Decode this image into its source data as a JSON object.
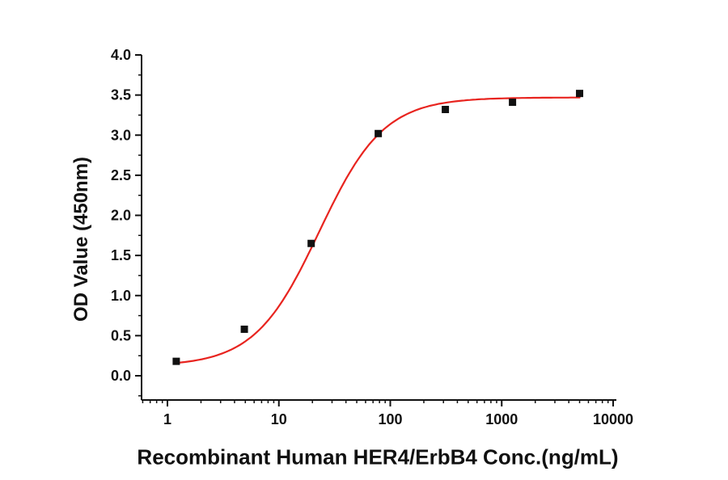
{
  "page": {
    "background": "#ffffff"
  },
  "chart_data": {
    "type": "scatter",
    "title": "",
    "xlabel": "Recombinant Human HER4/ErbB4 Conc.(ng/mL)",
    "ylabel": "OD Value (450nm)",
    "x_scale": "log",
    "grid": false,
    "legend": "none",
    "xlim": [
      0.6,
      10500
    ],
    "ylim": [
      -0.3,
      4.0
    ],
    "x_ticks": [
      1,
      10,
      100,
      1000,
      10000
    ],
    "x_tick_labels": [
      "1",
      "10",
      "100",
      "1000",
      "10000"
    ],
    "y_ticks": [
      0.0,
      0.5,
      1.0,
      1.5,
      2.0,
      2.5,
      3.0,
      3.5,
      4.0
    ],
    "points": [
      {
        "x": 1.2,
        "y": 0.18
      },
      {
        "x": 4.9,
        "y": 0.58
      },
      {
        "x": 19.5,
        "y": 1.65
      },
      {
        "x": 78,
        "y": 3.02
      },
      {
        "x": 312,
        "y": 3.32
      },
      {
        "x": 1250,
        "y": 3.41
      },
      {
        "x": 5000,
        "y": 3.52
      }
    ],
    "fit_curve": {
      "model": "4PL",
      "bottom": 0.12,
      "top": 3.47,
      "ec50": 23,
      "hill": 1.5,
      "x_start": 1.2,
      "x_end": 5000
    },
    "colors": {
      "curve": "#e8241f",
      "marker": "#111111",
      "axis": "#111111",
      "text": "#111111"
    }
  }
}
